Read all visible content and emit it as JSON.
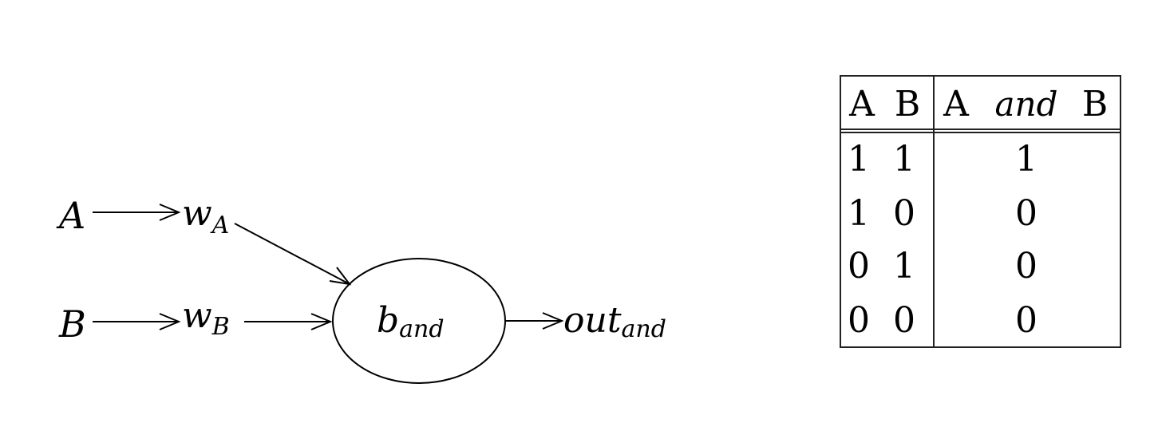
{
  "diagram": {
    "inputs": [
      {
        "id": "A",
        "label": "A"
      },
      {
        "id": "B",
        "label": "B"
      }
    ],
    "weights": [
      {
        "base": "w",
        "sub": "A"
      },
      {
        "base": "w",
        "sub": "B"
      }
    ],
    "bias_node": {
      "base": "b",
      "sub": "and"
    },
    "output": {
      "base": "out",
      "sub": "and"
    }
  },
  "truth_table": {
    "headers": {
      "a": "A",
      "b": "B",
      "result_left": "A",
      "result_op": "and",
      "result_right": "B"
    },
    "rows": [
      {
        "a": "1",
        "b": "1",
        "result": "1"
      },
      {
        "a": "1",
        "b": "0",
        "result": "0"
      },
      {
        "a": "0",
        "b": "1",
        "result": "0"
      },
      {
        "a": "0",
        "b": "0",
        "result": "0"
      }
    ]
  }
}
